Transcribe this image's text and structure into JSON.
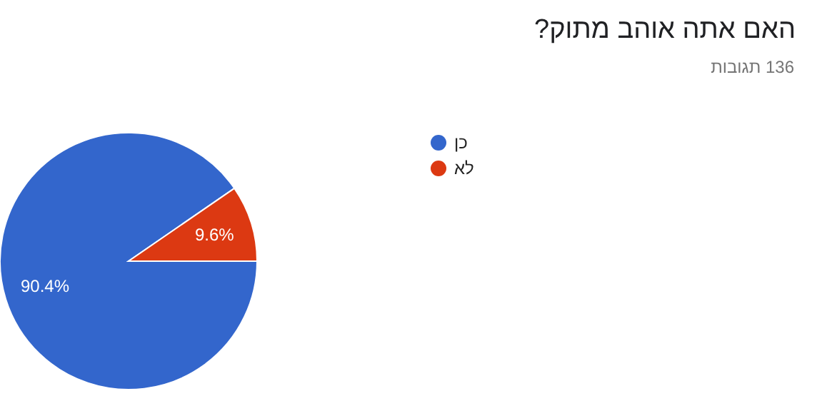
{
  "chart_data": {
    "type": "pie",
    "title": "האם אתה אוהב מתוק?",
    "subtitle": "136 תגובות",
    "categories": [
      "כן",
      "לא"
    ],
    "values": [
      90.4,
      9.6
    ],
    "colors": [
      "#3366cc",
      "#dc3912"
    ],
    "value_labels": [
      "90.4%",
      "9.6%"
    ],
    "legend": "right"
  }
}
